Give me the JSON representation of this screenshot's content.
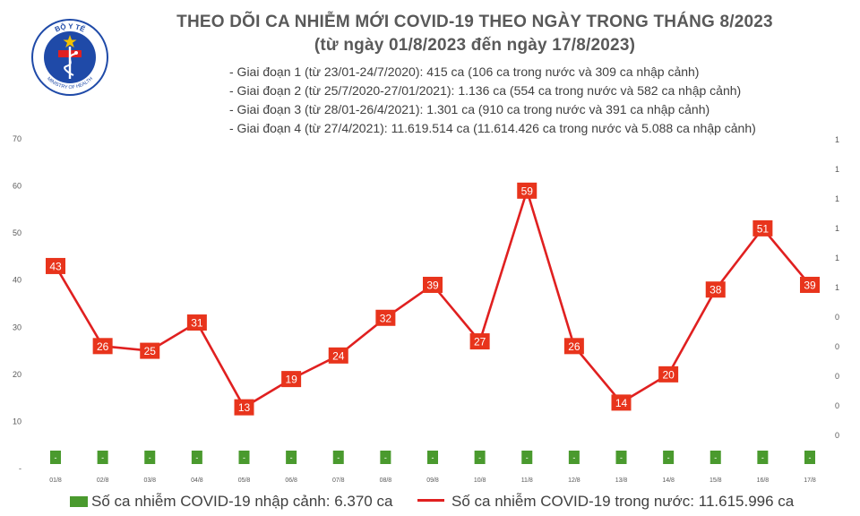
{
  "logo": {
    "top_text": "BỘ Y TẾ",
    "bottom_text": "MINISTRY OF HEALTH",
    "colors": {
      "ring": "#1f4aa8",
      "star": "#f2c200",
      "cross": "#e02020"
    }
  },
  "title": {
    "line1": "THEO DÕI CA NHIỄM MỚI COVID-19 THEO NGÀY TRONG THÁNG 8/2023",
    "line2": "(từ ngày 01/8/2023 đến ngày 17/8/2023)"
  },
  "stages": [
    "- Giai đoạn 1 (từ 23/01-24/7/2020): 415 ca (106 ca trong nước và 309 ca nhập cảnh)",
    "- Giai đoạn 2 (từ 25/7/2020-27/01/2021): 1.136 ca (554 ca trong nước và 582 ca nhập cảnh)",
    "- Giai đoạn 3 (từ 28/01-26/4/2021): 1.301 ca (910 ca trong nước và 391 ca nhập cảnh)",
    "- Giai đoạn 4 (từ 27/4/2021): 11.619.514 ca (11.614.426 ca trong nước và 5.088 ca nhập cảnh)"
  ],
  "chart_data": {
    "type": "line",
    "categories": [
      "01/8",
      "02/8",
      "03/8",
      "04/8",
      "05/8",
      "06/8",
      "07/8",
      "08/8",
      "09/8",
      "10/8",
      "11/8",
      "12/8",
      "13/8",
      "14/8",
      "15/8",
      "16/8",
      "17/8"
    ],
    "series": [
      {
        "name": "Số ca nhiễm COVID-19 trong nước: 11.615.996 ca",
        "type": "line",
        "color": "#e02020",
        "values": [
          43,
          26,
          25,
          31,
          13,
          19,
          24,
          32,
          39,
          27,
          59,
          26,
          14,
          20,
          38,
          51,
          39
        ],
        "labels": [
          "43",
          "26",
          "25",
          "31",
          "13",
          "19",
          "24",
          "32",
          "39",
          "27",
          "59",
          "26",
          "14",
          "20",
          "38",
          "51",
          "39"
        ]
      },
      {
        "name": "Số ca nhiễm COVID-19 nhập cảnh: 6.370 ca",
        "type": "bar",
        "color": "#4a9a2e",
        "values": [
          0,
          0,
          0,
          0,
          0,
          0,
          0,
          0,
          0,
          0,
          0,
          0,
          0,
          0,
          0,
          0,
          0
        ],
        "labels": [
          "-",
          "-",
          "-",
          "-",
          "-",
          "-",
          "-",
          "-",
          "-",
          "-",
          "-",
          "-",
          "-",
          "-",
          "-",
          "-",
          "-"
        ]
      }
    ],
    "y_left_ticks": [
      "70",
      "60",
      "50",
      "40",
      "30",
      "20",
      "10",
      "-"
    ],
    "y_right_ticks": [
      "1",
      "1",
      "1",
      "1",
      "1",
      "1",
      "0",
      "0",
      "0",
      "0",
      "0"
    ],
    "ylim": [
      0,
      70
    ],
    "grid": false,
    "legend_position": "bottom"
  }
}
